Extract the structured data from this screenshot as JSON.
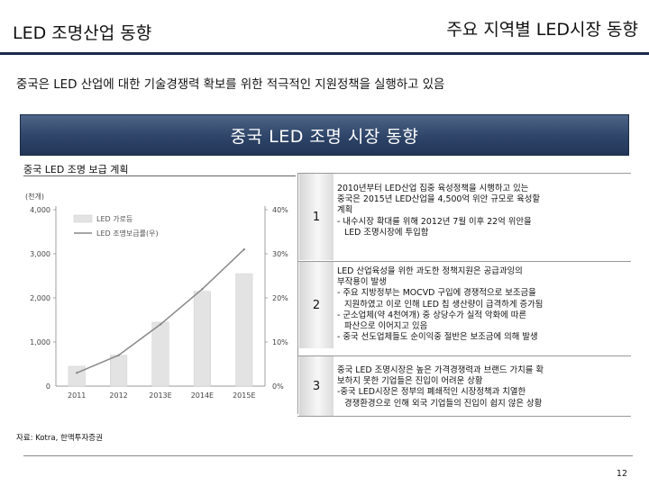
{
  "header": {
    "left_title": "LED 조명산업 동향",
    "right_title": "주요 지역별 LED시장 동향"
  },
  "subtitle": "중국은 LED 산업에 대한 기술경쟁력 확보를 위한 적극적인 지원정책을 실행하고 있음",
  "banner": "중국 LED 조명 시장 동향",
  "chart_data": {
    "type": "bar",
    "title": "중국 LED 조명 보급 계획",
    "unit_label": "(천개)",
    "categories": [
      "2011",
      "2012",
      "2013E",
      "2014E",
      "2015E"
    ],
    "series": [
      {
        "name": "LED 가로등",
        "type": "bar",
        "axis": "left",
        "values": [
          450,
          700,
          1450,
          2150,
          2550
        ]
      },
      {
        "name": "LED 조명보급률(우)",
        "type": "line",
        "axis": "right",
        "values": [
          3,
          7,
          14,
          22,
          31
        ]
      }
    ],
    "y_left_ticks": [
      "0",
      "1,000",
      "2,000",
      "3,000",
      "4,000"
    ],
    "y_left_range": [
      0,
      4000
    ],
    "y_right_ticks": [
      "0%",
      "10%",
      "20%",
      "30%",
      "40%"
    ],
    "y_right_range": [
      0,
      40
    ],
    "bar_color": "#e3e3e3",
    "line_color": "#888888"
  },
  "rows": [
    {
      "num": "1",
      "lines": [
        "2010년부터 LED산업 집중 육성정책을 시행하고 있는",
        "중국은 2015년 LED산업을 4,500억 위안 규모로 육성할",
        "계획",
        "- 내수시장 확대를 위해 2012년 7월 이후 22억 위안을",
        "LED 조명시장에 투입함"
      ]
    },
    {
      "num": "2",
      "lines": [
        "LED 산업육성을 위한 과도한 정책지원은 공급과잉의",
        "부작용이 발생",
        "- 주요 지방정부는 MOCVD 구입에 경쟁적으로 보조금을",
        "지원하였고 이로 인해 LED 칩 생산량이 급격하게 증가됨",
        "- 군소업체(약 4천여개) 중 상당수가 실적 악화에 따른",
        "파산으로 이어지고 있음",
        "- 중국 선도업체들도 순이익중 절반은 보조금에 의해 발생"
      ]
    },
    {
      "num": "3",
      "lines": [
        "중국 LED 조명시장은 높은 가격경쟁력과 브랜드 가치를 확",
        "보하지 못한 기업들은 진입이 어려운 상황",
        "-중국 LED시장은 정부의 폐쇄적인 시장정책과 치열한",
        "경쟁환경으로 인해 외국 기업들의 진입이 쉽지 않은 상황"
      ]
    }
  ],
  "source": "자료: Kotra, 한맥투자증권",
  "page_number": "12"
}
